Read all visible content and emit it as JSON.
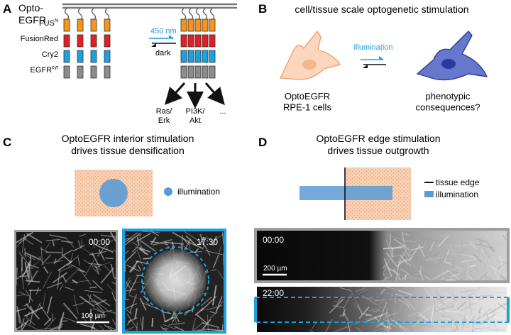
{
  "colors": {
    "fus": "#f7941d",
    "fusionred": "#e31e24",
    "cry2": "#1ea0e0",
    "egfr": "#8c8c8c",
    "light": "#1ea0e0",
    "tissue": "#f9d3b8",
    "tissue_dots": "#e8a679",
    "cell_orange": "#fbd6bd",
    "cell_orange_stroke": "#f0a070",
    "cell_blue": "#6677cc",
    "cell_blue_stroke": "#2b3a99",
    "illum": "#5b9bd5"
  },
  "panelA": {
    "letter": "A",
    "title_line1": "Opto-",
    "title_line2": "EGFR",
    "domain_labels": [
      {
        "base": "FUS",
        "sup": "N"
      },
      {
        "base": "FusionRed",
        "sup": ""
      },
      {
        "base": "Cry2",
        "sup": ""
      },
      {
        "base": "EGFR",
        "sup": "cyt"
      }
    ],
    "forward_label": "450 nm",
    "reverse_label": "dark",
    "outputs": [
      "Ras/\nErk",
      "PI3K/\nAkt",
      "..."
    ]
  },
  "panelB": {
    "letter": "B",
    "title": "cell/tissue scale optogenetic stimulation",
    "arrow_label": "illumination",
    "left_label": "OptoEGFR\nRPE-1 cells",
    "right_label": "phenotypic\nconsequences?"
  },
  "panelC": {
    "letter": "C",
    "title": "OptoEGFR interior stimulation\ndrives tissue densification",
    "legend_label": "illumination",
    "image_left_time": "00:00",
    "image_right_time": "17:30",
    "scale_bar": "100 µm"
  },
  "panelD": {
    "letter": "D",
    "title": "OptoEGFR edge stimulation\ndrives tissue outgrowth",
    "legend_edge": "tissue edge",
    "legend_illum": "illumination",
    "image_top_time": "00:00",
    "image_bottom_time": "22:00",
    "scale_bar": "200 µm"
  }
}
